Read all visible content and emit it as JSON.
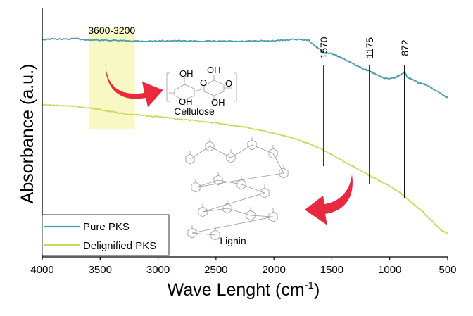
{
  "chart_data": {
    "type": "line",
    "xlabel": "Wave Lenght (cm",
    "xlabel_superscript": "-1",
    "xlabel_suffix": ")",
    "ylabel": "Absorbance (a.u.)",
    "xlim": [
      4000,
      500
    ],
    "x_reversed": true,
    "xticks": [
      4000,
      3500,
      3000,
      2500,
      2000,
      1500,
      1000,
      500
    ],
    "xtick_labels": [
      "4000",
      "3500",
      "3000",
      "2500",
      "2000",
      "1500",
      "1000",
      "500"
    ],
    "ylim": [
      0,
      1
    ],
    "grid": false,
    "legend_position": "bottom-left",
    "series": [
      {
        "name": "Pure PKS",
        "color": "#4a9eaa",
        "x": [
          4000,
          3900,
          3800,
          3700,
          3600,
          3500,
          3400,
          3300,
          3200,
          3100,
          3000,
          2900,
          2800,
          2700,
          2600,
          2500,
          2400,
          2300,
          2200,
          2100,
          2000,
          1900,
          1800,
          1700,
          1650,
          1600,
          1570,
          1500,
          1450,
          1400,
          1350,
          1300,
          1250,
          1200,
          1150,
          1100,
          1050,
          1000,
          950,
          900,
          872,
          850,
          800,
          750,
          700,
          650,
          600,
          550,
          500
        ],
        "y": [
          0.875,
          0.877,
          0.876,
          0.878,
          0.873,
          0.872,
          0.871,
          0.87,
          0.869,
          0.868,
          0.869,
          0.87,
          0.869,
          0.869,
          0.868,
          0.868,
          0.868,
          0.867,
          0.868,
          0.869,
          0.87,
          0.873,
          0.876,
          0.872,
          0.85,
          0.835,
          0.82,
          0.818,
          0.808,
          0.798,
          0.786,
          0.772,
          0.762,
          0.752,
          0.742,
          0.73,
          0.72,
          0.718,
          0.722,
          0.735,
          0.745,
          0.725,
          0.712,
          0.7,
          0.695,
          0.683,
          0.668,
          0.655,
          0.64
        ]
      },
      {
        "name": "Delignified PKS",
        "color": "#c8d85a",
        "x": [
          4000,
          3900,
          3800,
          3700,
          3600,
          3500,
          3400,
          3300,
          3200,
          3100,
          3000,
          2900,
          2800,
          2700,
          2600,
          2500,
          2400,
          2300,
          2200,
          2100,
          2000,
          1900,
          1800,
          1700,
          1600,
          1570,
          1500,
          1400,
          1300,
          1200,
          1175,
          1100,
          1000,
          900,
          872,
          800,
          700,
          600,
          550,
          500
        ],
        "y": [
          0.612,
          0.61,
          0.608,
          0.605,
          0.6,
          0.592,
          0.584,
          0.576,
          0.572,
          0.568,
          0.564,
          0.559,
          0.554,
          0.549,
          0.544,
          0.539,
          0.532,
          0.526,
          0.518,
          0.508,
          0.498,
          0.486,
          0.472,
          0.456,
          0.438,
          0.43,
          0.41,
          0.385,
          0.36,
          0.335,
          0.326,
          0.31,
          0.285,
          0.255,
          0.244,
          0.215,
          0.175,
          0.128,
          0.105,
          0.095
        ]
      }
    ],
    "annotations": {
      "band_label": "3600-3200",
      "band_range": [
        3600,
        3200
      ],
      "band_color": "#f7f8c4",
      "peak_labels": [
        "1570",
        "1175",
        "872"
      ],
      "peak_positions": [
        1570,
        1175,
        872
      ],
      "structure_labels": [
        "Cellulose",
        "Lignin"
      ],
      "arrow_color": "#e8293f"
    },
    "legend": [
      "Pure PKS",
      "Delignified PKS"
    ]
  }
}
